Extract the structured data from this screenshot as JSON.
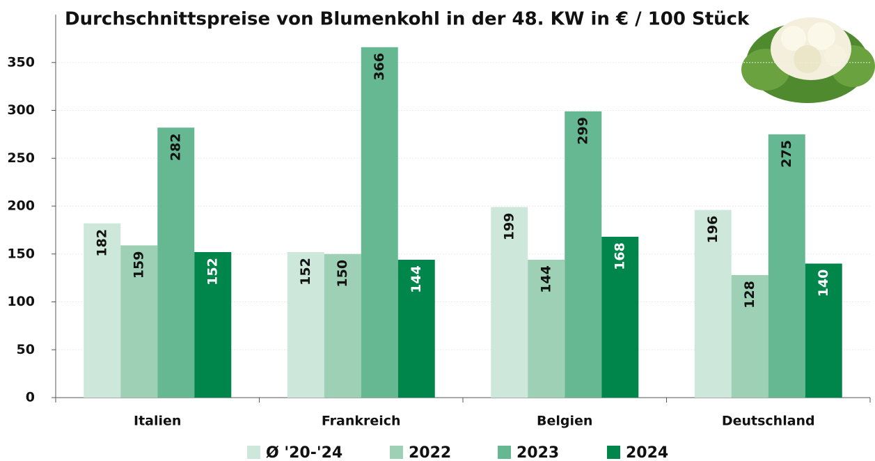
{
  "chart_data": {
    "type": "bar",
    "title": "Durchschnittspreise von Blumenkohl in der 48. KW in € / 100 Stück",
    "categories": [
      "Italien",
      "Frankreich",
      "Belgien",
      "Deutschland"
    ],
    "series": [
      {
        "name": "Ø '20-'24",
        "color": "#cde8da",
        "values": [
          182,
          152,
          199,
          196
        ]
      },
      {
        "name": "2022",
        "color": "#9dd0b5",
        "values": [
          159,
          150,
          144,
          128
        ]
      },
      {
        "name": "2023",
        "color": "#66b893",
        "values": [
          282,
          366,
          299,
          275
        ]
      },
      {
        "name": "2024",
        "color": "#00864a",
        "values": [
          152,
          144,
          168,
          140
        ]
      }
    ],
    "ylim": [
      0,
      400
    ],
    "yticks": [
      0,
      50,
      100,
      150,
      200,
      250,
      300,
      350
    ],
    "grid": true
  }
}
